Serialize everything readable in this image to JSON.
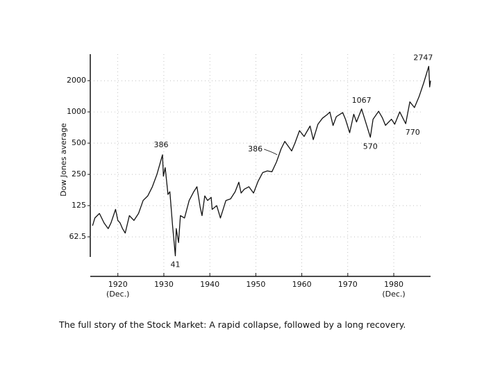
{
  "chart_data": {
    "type": "line",
    "y_label": "Dow Jones average",
    "caption": "The full story of the Stock Market: A rapid collapse, followed by a long recovery.",
    "log_scale": true,
    "grid": true,
    "color": "#111111",
    "xlim": [
      1914,
      1988
    ],
    "ylim": [
      40,
      3600
    ],
    "xticks": [
      {
        "value": 1920,
        "label": "1920\n(Dec.)"
      },
      1930,
      1940,
      1950,
      1960,
      1970,
      {
        "value": 1980,
        "label": "1980\n(Dec.)"
      }
    ],
    "yticks": [
      62.5,
      125,
      250,
      500,
      1000,
      2000
    ],
    "x": [
      1914.5,
      1915,
      1916,
      1917,
      1917.9,
      1918.5,
      1919.5,
      1920,
      1920.5,
      1921,
      1921.6,
      1922.5,
      1923.5,
      1924.5,
      1925.5,
      1926.5,
      1927.5,
      1928.5,
      1929.7,
      1929.9,
      1930.3,
      1930.9,
      1931.3,
      1931.9,
      1932.5,
      1932.7,
      1933.2,
      1933.6,
      1934.5,
      1935.5,
      1936.5,
      1937.2,
      1937.9,
      1938.3,
      1938.9,
      1939.5,
      1940.3,
      1940.5,
      1941.5,
      1942.3,
      1943.5,
      1944.5,
      1945.5,
      1946.3,
      1946.8,
      1947.5,
      1948.5,
      1949.5,
      1950.5,
      1951.5,
      1952.5,
      1953.5,
      1954.5,
      1955.5,
      1956.3,
      1957.8,
      1958.5,
      1959.5,
      1960.5,
      1961.8,
      1962.5,
      1963.5,
      1964.5,
      1965.5,
      1966.1,
      1966.8,
      1967.5,
      1968.9,
      1969.5,
      1970.4,
      1971.3,
      1971.9,
      1973.0,
      1974.9,
      1975.5,
      1976.7,
      1977.5,
      1978.2,
      1979.5,
      1980.2,
      1981.3,
      1982.6,
      1983.5,
      1984.5,
      1985.5,
      1986.5,
      1987.6,
      1987.8,
      1988
    ],
    "values": [
      80,
      95,
      105,
      85,
      75,
      85,
      115,
      90,
      85,
      75,
      68,
      100,
      90,
      105,
      140,
      155,
      190,
      250,
      386,
      240,
      290,
      160,
      170,
      80,
      41,
      75,
      55,
      100,
      95,
      140,
      170,
      190,
      120,
      100,
      155,
      140,
      150,
      115,
      125,
      95,
      140,
      145,
      170,
      210,
      165,
      180,
      190,
      165,
      215,
      260,
      270,
      265,
      330,
      440,
      520,
      420,
      500,
      660,
      580,
      730,
      540,
      760,
      870,
      940,
      995,
      740,
      900,
      985,
      850,
      630,
      950,
      800,
      1067,
      570,
      850,
      1015,
      880,
      742,
      850,
      760,
      1000,
      770,
      1250,
      1100,
      1400,
      1900,
      2747,
      1740,
      2000
    ],
    "annotations": [
      {
        "x": 1929.7,
        "value": 386
      },
      {
        "x": 1932.5,
        "value": 41
      },
      {
        "x": 1954.8,
        "value": 386
      },
      {
        "x": 1973.0,
        "value": 1067
      },
      {
        "x": 1974.9,
        "value": 570
      },
      {
        "x": 1982.6,
        "value": 770
      },
      {
        "x": 1987.6,
        "value": 2747
      }
    ]
  }
}
